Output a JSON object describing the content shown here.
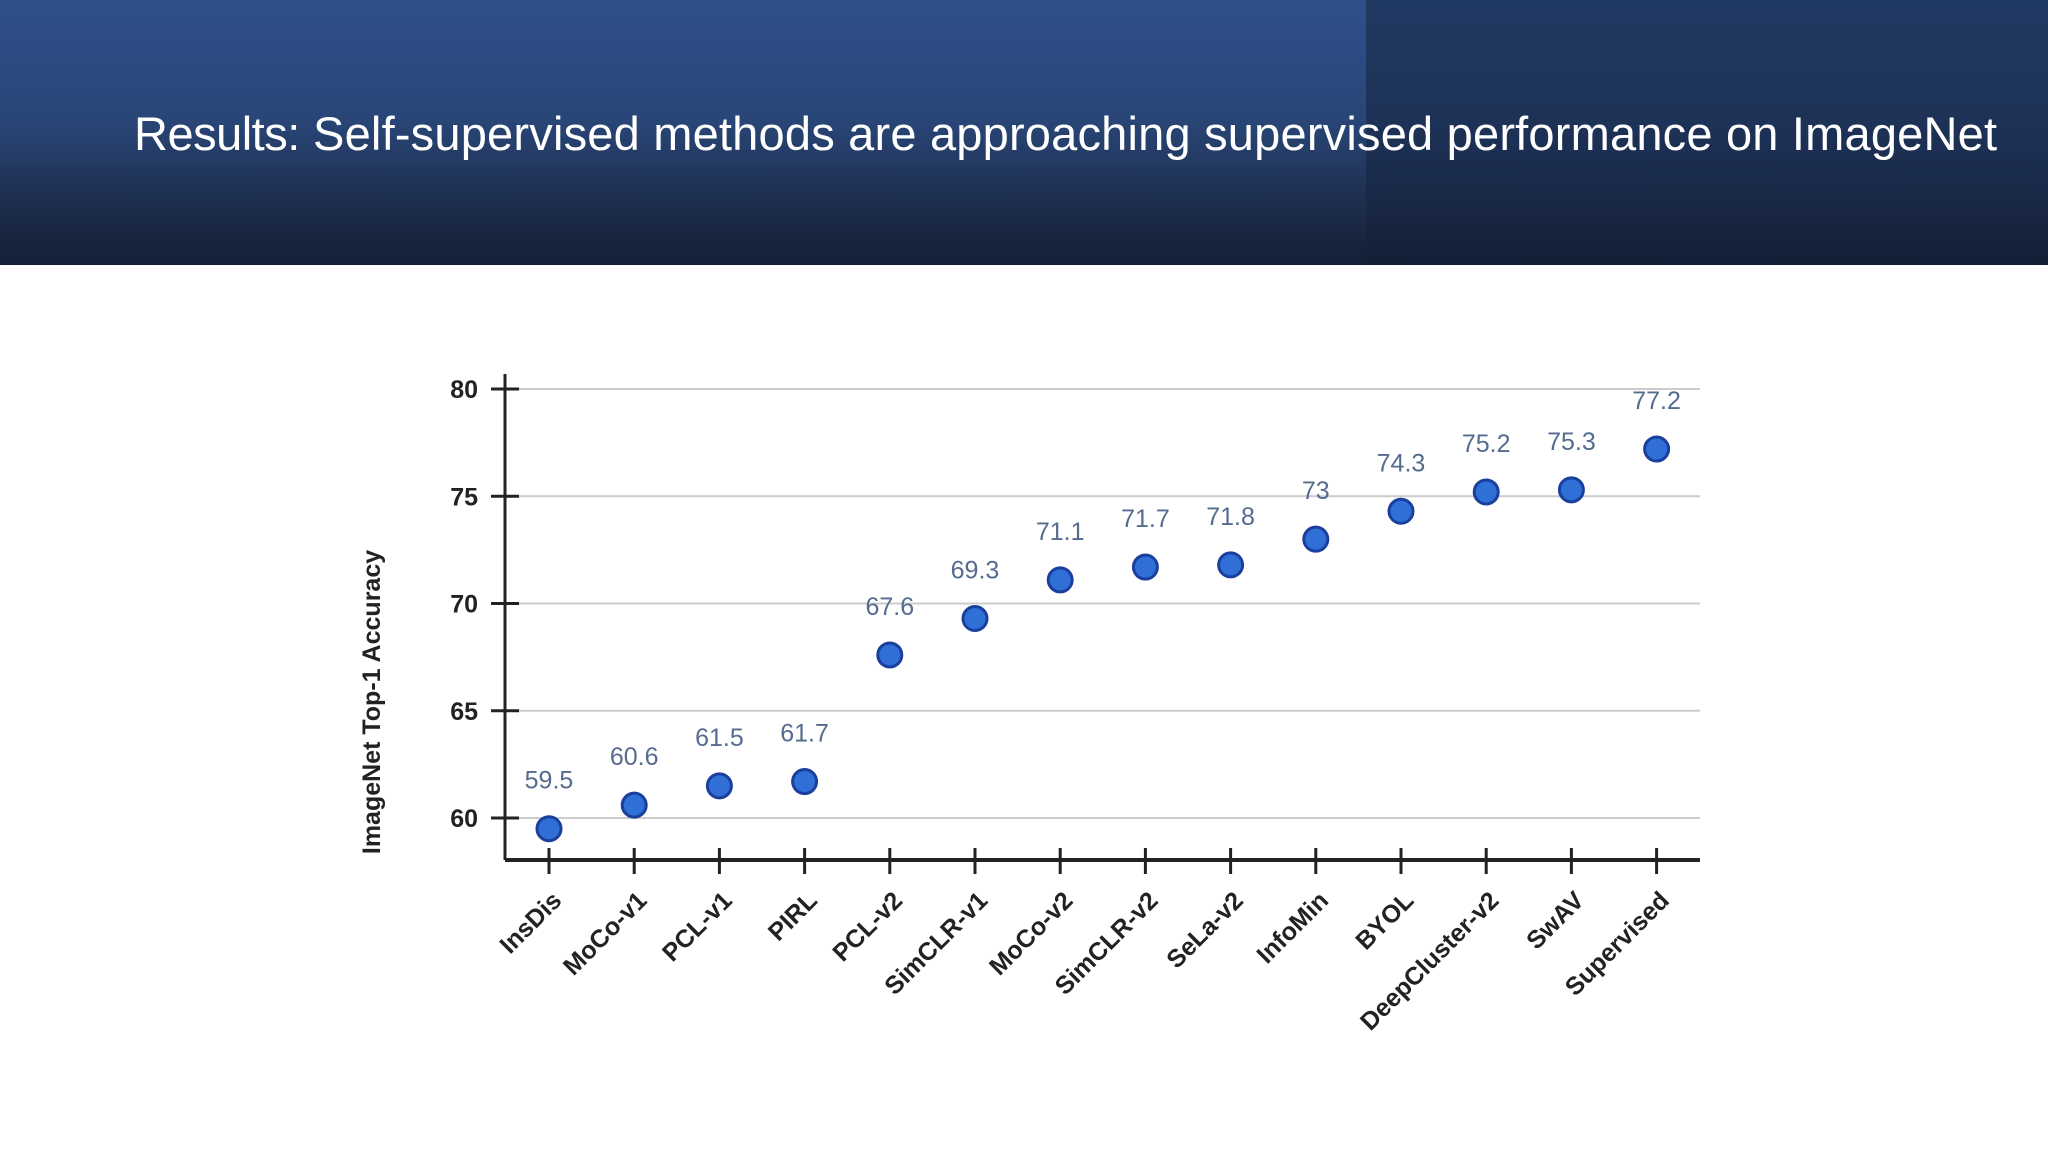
{
  "slide": {
    "title_lead": "Results:",
    "title_rest": " Self-supervised methods are approaching supervised performance on ImageNet"
  },
  "colors": {
    "header_top": "#2f4f8b",
    "header_bottom": "#141f36",
    "point_fill": "#2f6fd6",
    "point_stroke": "#1a3f9c",
    "label_color": "#556b8f",
    "axis_color": "#222222",
    "grid_color": "#cccccc"
  },
  "chart_data": {
    "type": "scatter",
    "ylabel": "ImageNet Top-1 Accuracy",
    "xlabel": "",
    "ylim": [
      58,
      80
    ],
    "yticks": [
      60,
      65,
      70,
      75,
      80
    ],
    "grid": true,
    "categories": [
      "InsDis",
      "MoCo-v1",
      "PCL-v1",
      "PIRL",
      "PCL-v2",
      "SimCLR-v1",
      "MoCo-v2",
      "SimCLR-v2",
      "SeLa-v2",
      "InfoMin",
      "BYOL",
      "DeepCluster-v2",
      "SwAV",
      "Supervised"
    ],
    "values": [
      59.5,
      60.6,
      61.5,
      61.7,
      67.6,
      69.3,
      71.1,
      71.7,
      71.8,
      73,
      74.3,
      75.2,
      75.3,
      77.2
    ],
    "value_labels": [
      "59.5",
      "60.6",
      "61.5",
      "61.7",
      "67.6",
      "69.3",
      "71.1",
      "71.7",
      "71.8",
      "73",
      "74.3",
      "75.2",
      "75.3",
      "77.2"
    ]
  }
}
